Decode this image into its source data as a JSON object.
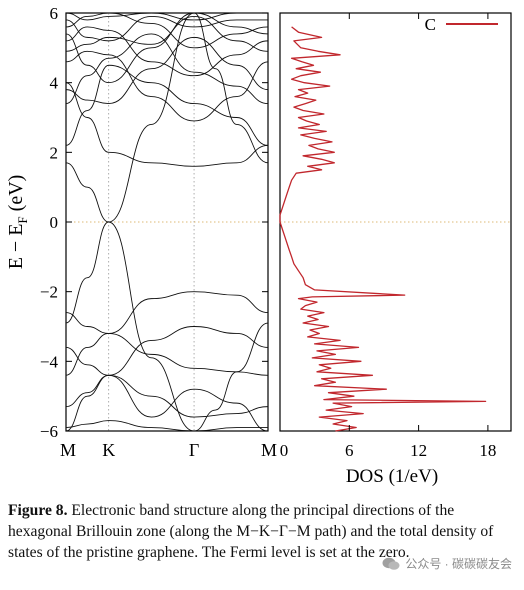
{
  "figure": {
    "caption_label": "Figure 8.",
    "caption_text": " Electronic band structure along the principal directions of the hexagonal Brillouin zone (along the M−K−Γ−M path) and the total density of states of the pristine graphene. The Fermi level is set at the zero.",
    "watermark": "公众号 · 碳碳碳友会"
  },
  "chart_data": [
    {
      "type": "line",
      "panel": "band-structure",
      "ylabel": "E − E",
      "ylabel_sub": "F",
      "ylabel_unit": " (eV)",
      "ylim": [
        -6,
        6
      ],
      "yticks": [
        -6,
        -4,
        -2,
        0,
        2,
        4,
        6
      ],
      "ytick_labels": [
        "−6",
        "−4",
        "−2",
        "0",
        "2",
        "4",
        "6"
      ],
      "kpoints": [
        {
          "label": "M",
          "x": 0
        },
        {
          "label": "K",
          "x": 1
        },
        {
          "label": "Γ",
          "x": 3
        },
        {
          "label": "M",
          "x": 4.732
        }
      ],
      "fermi_level": 0,
      "grid": "dotted lines at K, Γ and E=0",
      "series": [
        {
          "x": [
            0,
            0.5,
            1,
            2,
            3,
            3.5,
            4.0,
            4.732
          ],
          "y": [
            -2.9,
            -1.6,
            0.0,
            -3.9,
            -6.0,
            -5.4,
            -4.3,
            -2.9
          ]
        },
        {
          "x": [
            0,
            0.5,
            1,
            2,
            3,
            3.5,
            4.0,
            4.732
          ],
          "y": [
            1.7,
            1.0,
            0.0,
            2.8,
            6.0,
            4.4,
            2.8,
            1.7
          ]
        },
        {
          "x": [
            0,
            0.5,
            1,
            2,
            3,
            4.0,
            4.732
          ],
          "y": [
            -2.6,
            -3.0,
            -3.2,
            -2.2,
            -2.0,
            -2.1,
            -2.6
          ]
        },
        {
          "x": [
            0,
            0.5,
            1,
            2,
            3,
            4.0,
            4.732
          ],
          "y": [
            -3.6,
            -4.1,
            -4.4,
            -3.4,
            -3.0,
            -3.2,
            -3.6
          ]
        },
        {
          "x": [
            0,
            0.5,
            1,
            2,
            3,
            4.0,
            4.732
          ],
          "y": [
            -4.4,
            -3.6,
            -3.2,
            -3.8,
            -4.2,
            -4.3,
            -4.4
          ]
        },
        {
          "x": [
            0,
            0.5,
            1,
            2,
            3,
            4.0,
            4.732
          ],
          "y": [
            -5.3,
            -4.9,
            -4.4,
            -5.0,
            -5.6,
            -5.5,
            -5.3
          ]
        },
        {
          "x": [
            0,
            0.5,
            1,
            2,
            3,
            4.0,
            4.732
          ],
          "y": [
            -5.9,
            -5.8,
            -5.7,
            -5.9,
            -6.0,
            -5.9,
            -5.9
          ]
        },
        {
          "x": [
            0,
            0.5,
            1,
            2,
            3,
            4.0,
            4.732
          ],
          "y": [
            -6.0,
            -5.0,
            -4.4,
            -5.6,
            -4.8,
            -5.2,
            -6.0
          ]
        },
        {
          "x": [
            0,
            0.5,
            1,
            2,
            3,
            4.0,
            4.732
          ],
          "y": [
            4.0,
            3.0,
            2.0,
            1.7,
            1.6,
            1.7,
            2.2
          ]
        },
        {
          "x": [
            0,
            0.5,
            1,
            2,
            3,
            4.0,
            4.732
          ],
          "y": [
            2.2,
            3.2,
            4.5,
            4.0,
            3.4,
            3.0,
            2.2
          ]
        },
        {
          "x": [
            0,
            0.5,
            1,
            2,
            3,
            4.0,
            4.732
          ],
          "y": [
            3.4,
            4.2,
            4.7,
            5.4,
            4.3,
            3.9,
            3.4
          ]
        },
        {
          "x": [
            0,
            0.5,
            1,
            2,
            3,
            4.0,
            4.732
          ],
          "y": [
            4.6,
            4.9,
            4.8,
            3.6,
            2.9,
            3.6,
            4.6
          ]
        },
        {
          "x": [
            0,
            0.5,
            1,
            2,
            3,
            4.0,
            4.732
          ],
          "y": [
            5.2,
            5.6,
            5.5,
            4.6,
            4.2,
            4.8,
            5.2
          ]
        },
        {
          "x": [
            0,
            0.5,
            1,
            2,
            3,
            4.0,
            4.732
          ],
          "y": [
            5.6,
            5.9,
            6.0,
            5.7,
            5.0,
            5.4,
            5.6
          ]
        },
        {
          "x": [
            0,
            0.5,
            1,
            2,
            3,
            4.0,
            4.732
          ],
          "y": [
            5.8,
            5.3,
            5.2,
            5.9,
            5.6,
            5.8,
            5.8
          ]
        },
        {
          "x": [
            0,
            0.5,
            1,
            2,
            3,
            4.0,
            4.732
          ],
          "y": [
            6.0,
            5.8,
            5.9,
            6.0,
            5.8,
            6.0,
            6.0
          ]
        },
        {
          "x": [
            0,
            0.5,
            1,
            2,
            3,
            4.0,
            4.732
          ],
          "y": [
            4.9,
            5.1,
            5.3,
            5.1,
            5.9,
            5.2,
            4.9
          ]
        },
        {
          "x": [
            0,
            0.5,
            1,
            2,
            3,
            4.0,
            4.732
          ],
          "y": [
            3.8,
            3.5,
            3.4,
            4.4,
            5.3,
            4.5,
            3.8
          ]
        },
        {
          "x": [
            0,
            0.5,
            1,
            2,
            3,
            4.0,
            4.732
          ],
          "y": [
            5.4,
            4.5,
            4.0,
            5.0,
            6.0,
            5.6,
            5.4
          ]
        }
      ]
    },
    {
      "type": "line",
      "panel": "dos",
      "xlabel": "DOS (1/eV)",
      "xlim": [
        0,
        20
      ],
      "xticks": [
        0,
        6,
        12,
        18
      ],
      "ylim": [
        -6,
        6
      ],
      "legend": "top-right",
      "fermi_level": 0,
      "series": [
        {
          "name": "C",
          "color": "#c1272d",
          "y": [
            5.6,
            5.45,
            5.3,
            5.2,
            5.0,
            4.9,
            4.8,
            4.7,
            4.6,
            4.5,
            4.4,
            4.3,
            4.2,
            4.1,
            4.0,
            3.9,
            3.8,
            3.7,
            3.6,
            3.5,
            3.4,
            3.3,
            3.2,
            3.1,
            3.0,
            2.9,
            2.8,
            2.7,
            2.6,
            2.5,
            2.4,
            2.3,
            2.2,
            2.1,
            2.0,
            1.9,
            1.8,
            1.7,
            1.6,
            1.5,
            1.4,
            1.3,
            1.2,
            1.0,
            0.8,
            0.6,
            0.4,
            0.2,
            0.0,
            -0.2,
            -0.4,
            -0.6,
            -0.8,
            -1.0,
            -1.2,
            -1.4,
            -1.6,
            -1.8,
            -1.95,
            -2.1,
            -2.15,
            -2.2,
            -2.3,
            -2.4,
            -2.5,
            -2.6,
            -2.7,
            -2.8,
            -2.9,
            -3.0,
            -3.1,
            -3.2,
            -3.3,
            -3.4,
            -3.5,
            -3.6,
            -3.7,
            -3.8,
            -3.9,
            -4.0,
            -4.1,
            -4.2,
            -4.3,
            -4.4,
            -4.5,
            -4.6,
            -4.7,
            -4.8,
            -4.9,
            -5.0,
            -5.1,
            -5.15,
            -5.2,
            -5.3,
            -5.4,
            -5.5,
            -5.6,
            -5.7,
            -5.8,
            -5.9,
            -6.0
          ],
          "x": [
            1.0,
            1.6,
            3.6,
            1.2,
            1.8,
            3.3,
            5.2,
            1.0,
            1.9,
            2.9,
            1.4,
            3.5,
            1.8,
            1.0,
            2.1,
            4.3,
            1.6,
            2.4,
            1.3,
            3.1,
            2.2,
            1.2,
            2.0,
            3.8,
            1.6,
            2.3,
            3.4,
            1.6,
            4.0,
            1.8,
            3.0,
            4.5,
            2.5,
            3.3,
            4.7,
            2.0,
            3.6,
            4.7,
            2.4,
            3.6,
            1.4,
            1.2,
            1.0,
            0.8,
            0.6,
            0.4,
            0.2,
            0.0,
            0.0,
            0.2,
            0.4,
            0.6,
            0.8,
            1.0,
            1.2,
            1.6,
            2.0,
            2.2,
            3.0,
            10.8,
            2.8,
            1.6,
            3.2,
            2.2,
            1.8,
            3.8,
            2.4,
            3.3,
            2.0,
            4.2,
            2.6,
            3.4,
            2.4,
            5.2,
            3.0,
            6.8,
            3.2,
            4.8,
            2.8,
            7.0,
            3.4,
            4.4,
            3.2,
            8.0,
            3.6,
            4.8,
            3.0,
            9.2,
            4.2,
            6.4,
            3.8,
            17.8,
            4.6,
            6.2,
            4.0,
            7.2,
            3.4,
            5.8,
            4.6,
            6.6,
            4.8
          ]
        }
      ]
    }
  ]
}
